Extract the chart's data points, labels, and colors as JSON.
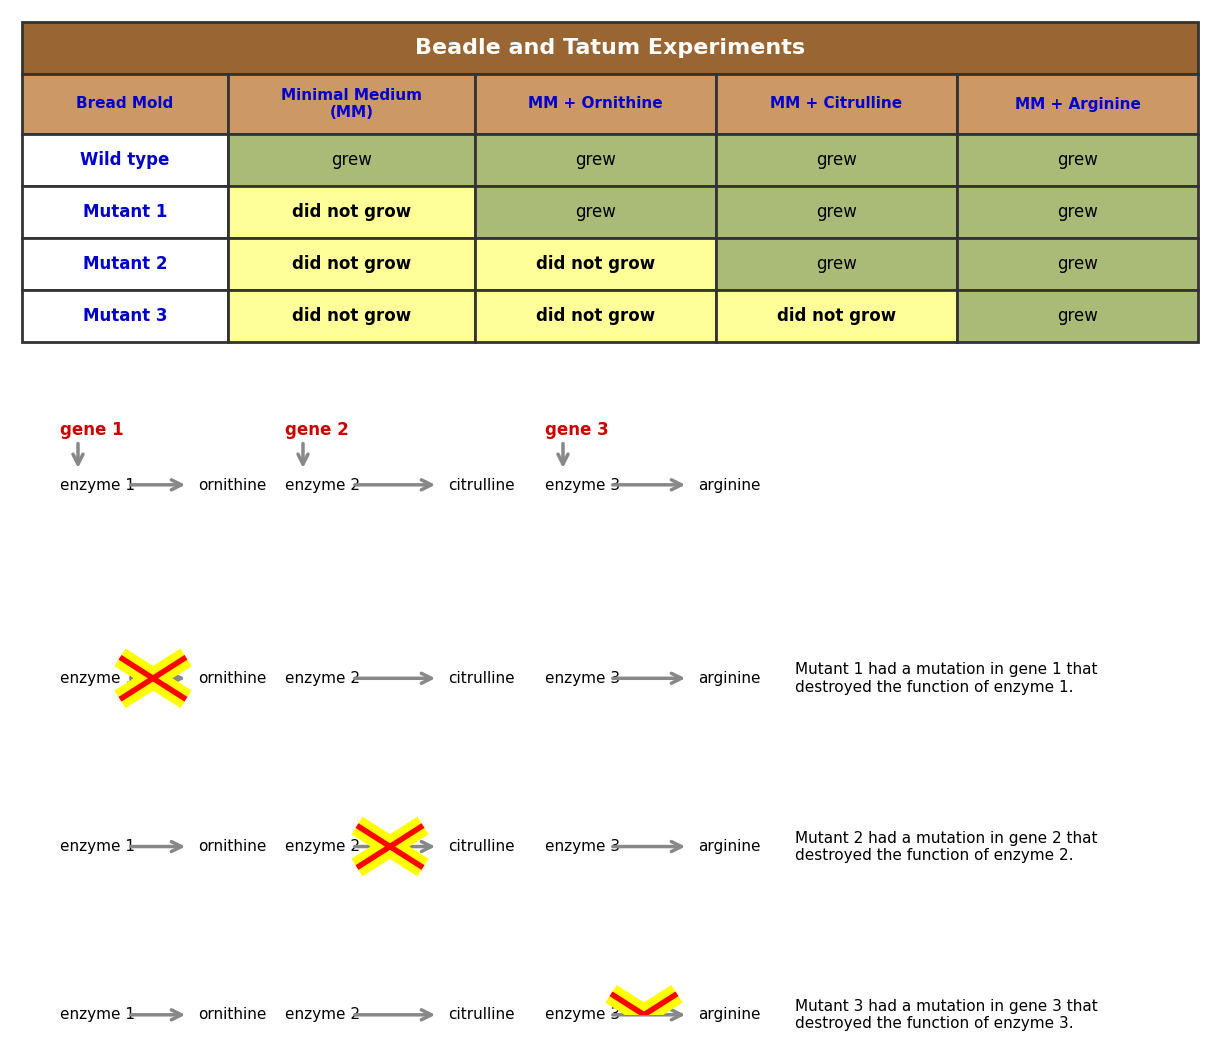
{
  "title": "Beadle and Tatum Experiments",
  "title_bg": "#996633",
  "title_color": "#ffffff",
  "header_bg": "#cc9966",
  "header_color": "#0000cc",
  "row_label_color": "#0000cc",
  "col_headers": [
    "Bread Mold",
    "Minimal Medium\n(MM)",
    "MM + Ornithine",
    "MM + Citrulline",
    "MM + Arginine"
  ],
  "rows": [
    {
      "label": "Wild type",
      "values": [
        "grew",
        "grew",
        "grew",
        "grew"
      ]
    },
    {
      "label": "Mutant 1",
      "values": [
        "did not grow",
        "grew",
        "grew",
        "grew"
      ]
    },
    {
      "label": "Mutant 2",
      "values": [
        "did not grow",
        "did not grow",
        "grew",
        "grew"
      ]
    },
    {
      "label": "Mutant 3",
      "values": [
        "did not grow",
        "did not grow",
        "did not grow",
        "grew"
      ]
    }
  ],
  "cell_grow_color": "#aabb77",
  "cell_nogrow_color": "#ffff99",
  "border_color": "#333333",
  "gene_color": "#cc0000",
  "arrow_color": "#888888",
  "text_color": "#000000",
  "enzyme_labels": [
    "enzyme 1",
    "enzyme 2",
    "enzyme 3"
  ],
  "molecule_labels": [
    "ornithine",
    "citrulline",
    "arginine"
  ],
  "gene_labels": [
    "gene 1",
    "gene 2",
    "gene 3"
  ],
  "mutant_notes": [
    "Mutant 1 had a mutation in gene 1 that\ndestroyed the function of enzyme 1.",
    "Mutant 2 had a mutation in gene 2 that\ndestroyed the function of enzyme 2.",
    "Mutant 3 had a mutation in gene 3 that\ndestroyed the function of enzyme 3."
  ]
}
